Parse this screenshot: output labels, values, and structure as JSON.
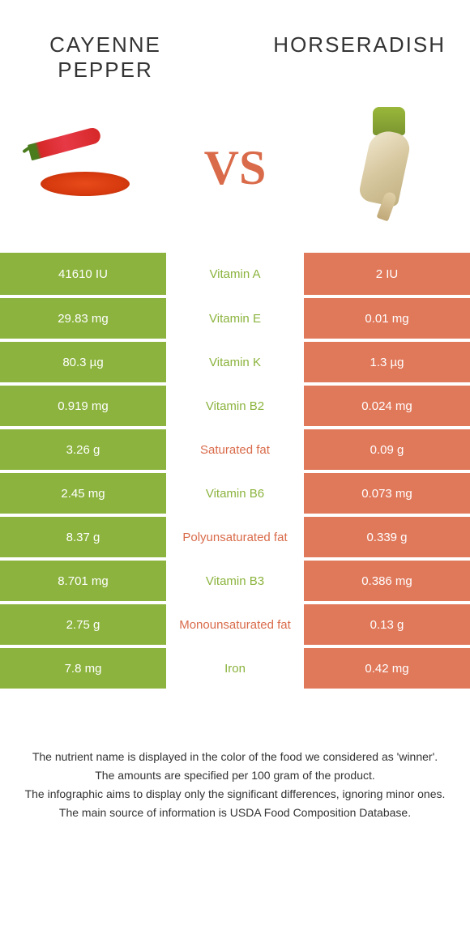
{
  "titles": {
    "left": "CAYENNE PEPPER",
    "right": "HORSERADISH"
  },
  "vs": "VS",
  "colors": {
    "green": "#8bb33d",
    "orange": "#e0785a",
    "nutrient_green": "#8bb33d",
    "nutrient_orange": "#d96b4a",
    "white": "#ffffff"
  },
  "rows": [
    {
      "left": "41610 IU",
      "label": "Vitamin A",
      "right": "2 IU",
      "winner": "left"
    },
    {
      "left": "29.83 mg",
      "label": "Vitamin E",
      "right": "0.01 mg",
      "winner": "left"
    },
    {
      "left": "80.3 µg",
      "label": "Vitamin K",
      "right": "1.3 µg",
      "winner": "left"
    },
    {
      "left": "0.919 mg",
      "label": "Vitamin B2",
      "right": "0.024 mg",
      "winner": "left"
    },
    {
      "left": "3.26 g",
      "label": "Saturated fat",
      "right": "0.09 g",
      "winner": "right"
    },
    {
      "left": "2.45 mg",
      "label": "Vitamin B6",
      "right": "0.073 mg",
      "winner": "left"
    },
    {
      "left": "8.37 g",
      "label": "Polyunsaturated fat",
      "right": "0.339 g",
      "winner": "right"
    },
    {
      "left": "8.701 mg",
      "label": "Vitamin B3",
      "right": "0.386 mg",
      "winner": "left"
    },
    {
      "left": "2.75 g",
      "label": "Monounsaturated fat",
      "right": "0.13 g",
      "winner": "right"
    },
    {
      "left": "7.8 mg",
      "label": "Iron",
      "right": "0.42 mg",
      "winner": "left"
    }
  ],
  "footer": [
    "The nutrient name is displayed in the color of the food we considered as 'winner'.",
    "The amounts are specified per 100 gram of the product.",
    "The infographic aims to display only the significant differences, ignoring minor ones.",
    "The main source of information is USDA Food Composition Database."
  ]
}
